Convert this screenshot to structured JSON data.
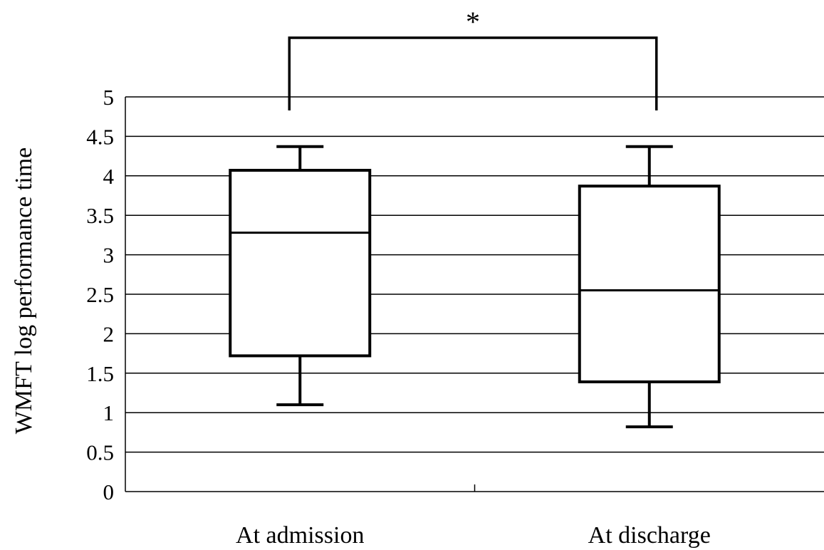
{
  "chart_data": {
    "type": "boxplot",
    "ylabel": "WMFT log performance time",
    "xlabel": "",
    "ylim": [
      0,
      5
    ],
    "yticks": [
      "0",
      "0.5",
      "1",
      "1.5",
      "2",
      "2.5",
      "3",
      "3.5",
      "4",
      "4.5",
      "5"
    ],
    "grid": "horizontal",
    "categories": [
      "At admission",
      "At discharge"
    ],
    "boxes": [
      {
        "category": "At admission",
        "whisker_low": 1.1,
        "q1": 1.72,
        "median": 3.28,
        "q3": 4.07,
        "whisker_high": 4.37
      },
      {
        "category": "At discharge",
        "whisker_low": 0.82,
        "q1": 1.39,
        "median": 2.55,
        "q3": 3.87,
        "whisker_high": 4.37
      }
    ],
    "significance": {
      "between": [
        "At admission",
        "At discharge"
      ],
      "label": "*"
    }
  }
}
